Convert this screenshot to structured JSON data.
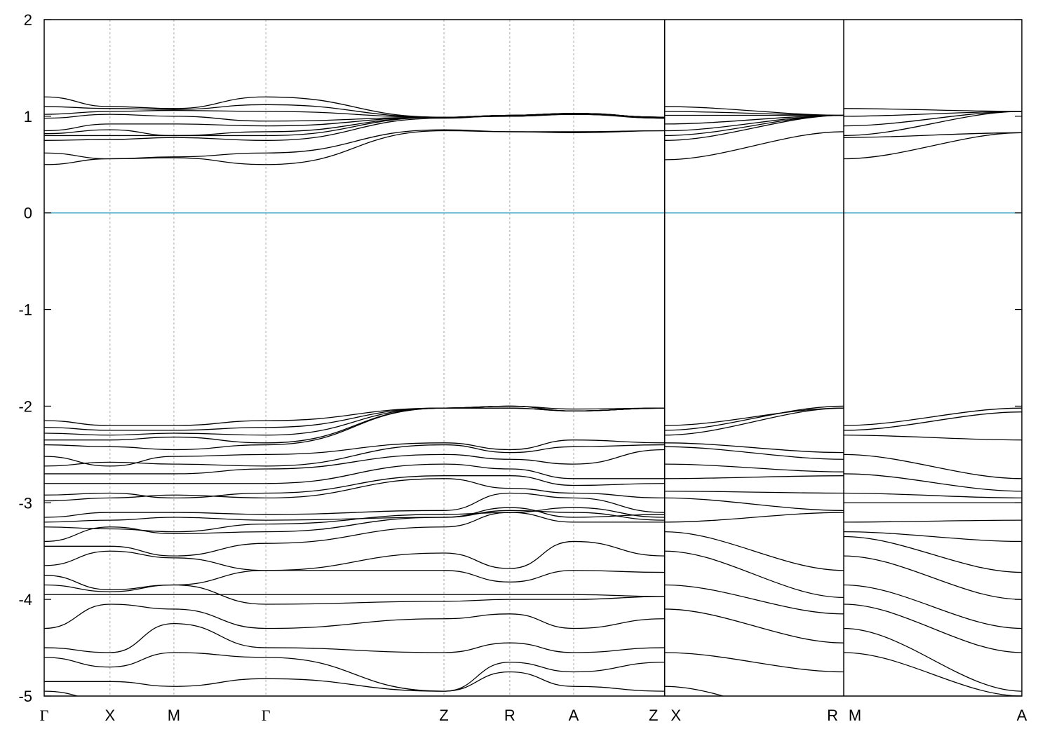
{
  "chart_data": {
    "type": "line",
    "title": "",
    "xlabel": "",
    "ylabel": "",
    "ylim": [
      -5,
      2
    ],
    "y_ticks": [
      2,
      1,
      0,
      -1,
      -2,
      -3,
      -4,
      -5
    ],
    "y_tick_labels": [
      "2",
      "1",
      "0",
      "-1",
      "-2",
      "-3",
      "-4",
      "-5"
    ],
    "grid": "vertical dotted lines at high-symmetry points",
    "fermi_level": {
      "value": 0,
      "color": "#4aa8c8"
    },
    "line_color": "#000000",
    "kpoint_labels": [
      "Γ",
      "X",
      "M",
      "Γ",
      "Z",
      "R",
      "A",
      "Z",
      "X",
      "R",
      "M",
      "A"
    ],
    "kpoint_positions": [
      0,
      0.68,
      1.34,
      2.29,
      4.13,
      4.81,
      5.47,
      6.41,
      6.41,
      8.26,
      8.26,
      10.1
    ],
    "panel_breaks": [
      6.41,
      8.26
    ],
    "segments": [
      {
        "x": [
          0,
          0.68,
          1.34,
          2.29,
          4.13,
          4.81,
          5.47,
          6.41
        ],
        "bands": [
          [
            -4.95,
            -5.05,
            -5.1,
            -5.05,
            -5.2,
            -5.2,
            -5.2,
            -5.1
          ],
          [
            -4.85,
            -4.85,
            -4.9,
            -4.82,
            -4.95,
            -4.75,
            -4.9,
            -4.95
          ],
          [
            -4.6,
            -4.7,
            -4.55,
            -4.6,
            -4.95,
            -4.65,
            -4.75,
            -4.65
          ],
          [
            -4.5,
            -4.55,
            -4.25,
            -4.5,
            -4.55,
            -4.45,
            -4.55,
            -4.5
          ],
          [
            -4.3,
            -4.05,
            -4.1,
            -4.3,
            -4.2,
            -4.15,
            -4.3,
            -4.2
          ],
          [
            -3.95,
            -3.95,
            -3.95,
            -3.95,
            -3.95,
            -3.95,
            -3.95,
            -3.97
          ],
          [
            -3.85,
            -3.92,
            -3.85,
            -4.05,
            -4.02,
            -4.0,
            -4.0,
            -3.97
          ],
          [
            -3.75,
            -3.9,
            -3.85,
            -3.7,
            -3.7,
            -3.82,
            -3.7,
            -3.72
          ],
          [
            -3.65,
            -3.5,
            -3.57,
            -3.7,
            -3.52,
            -3.68,
            -3.4,
            -3.55
          ],
          [
            -3.45,
            -3.45,
            -3.55,
            -3.42,
            -3.25,
            -3.1,
            -3.2,
            -3.2
          ],
          [
            -3.4,
            -3.25,
            -3.32,
            -3.3,
            -3.15,
            -3.08,
            -3.1,
            -3.18
          ],
          [
            -3.25,
            -3.27,
            -3.3,
            -3.22,
            -3.12,
            -3.1,
            -3.05,
            -3.15
          ],
          [
            -3.2,
            -3.18,
            -3.15,
            -3.18,
            -3.15,
            -3.05,
            -3.15,
            -3.12
          ],
          [
            -3.15,
            -3.1,
            -3.1,
            -3.12,
            -3.08,
            -2.9,
            -2.95,
            -3.1
          ],
          [
            -2.98,
            -2.95,
            -2.92,
            -2.95,
            -2.75,
            -2.85,
            -2.9,
            -2.95
          ],
          [
            -2.92,
            -2.9,
            -2.95,
            -2.9,
            -2.72,
            -2.72,
            -2.82,
            -2.8
          ],
          [
            -2.8,
            -2.8,
            -2.8,
            -2.8,
            -2.6,
            -2.65,
            -2.75,
            -2.75
          ],
          [
            -2.7,
            -2.7,
            -2.7,
            -2.65,
            -2.5,
            -2.55,
            -2.6,
            -2.45
          ],
          [
            -2.62,
            -2.58,
            -2.6,
            -2.62,
            -2.4,
            -2.48,
            -2.42,
            -2.4
          ],
          [
            -2.52,
            -2.62,
            -2.52,
            -2.5,
            -2.38,
            -2.45,
            -2.35,
            -2.38
          ],
          [
            -2.4,
            -2.42,
            -2.45,
            -2.4,
            -2.02,
            -2.02,
            -2.05,
            -2.02
          ],
          [
            -2.35,
            -2.35,
            -2.32,
            -2.38,
            -2.02,
            -2.0,
            -2.05,
            -2.02
          ],
          [
            -2.28,
            -2.3,
            -2.28,
            -2.3,
            -2.02,
            -2.02,
            -2.05,
            -2.02
          ],
          [
            -2.22,
            -2.25,
            -2.25,
            -2.22,
            -2.02,
            -2.0,
            -2.05,
            -2.02
          ],
          [
            -2.15,
            -2.2,
            -2.2,
            -2.15,
            -2.02,
            -2.0,
            -2.03,
            -2.02
          ],
          [
            0.5,
            0.56,
            0.57,
            0.5,
            0.85,
            0.84,
            0.83,
            0.85
          ],
          [
            0.62,
            0.56,
            0.58,
            0.62,
            0.86,
            0.84,
            0.84,
            0.85
          ],
          [
            0.75,
            0.76,
            0.78,
            0.75,
            0.98,
            1.01,
            1.03,
            0.98
          ],
          [
            0.8,
            0.8,
            0.8,
            0.8,
            0.99,
            1.0,
            1.03,
            0.99
          ],
          [
            0.82,
            0.86,
            0.8,
            0.84,
            0.99,
            1.0,
            1.02,
            0.99
          ],
          [
            0.85,
            0.92,
            0.92,
            0.9,
            0.99,
            1.01,
            1.03,
            0.98
          ],
          [
            0.98,
            1.02,
            1.0,
            0.95,
            0.99,
            1.01,
            1.02,
            0.99
          ],
          [
            1.02,
            1.05,
            1.06,
            1.05,
            0.99,
            1.01,
            1.03,
            0.99
          ],
          [
            1.1,
            1.08,
            1.07,
            1.12,
            0.99,
            1.01,
            1.03,
            0.99
          ],
          [
            1.2,
            1.1,
            1.08,
            1.2,
            0.99,
            1.0,
            1.02,
            0.98
          ]
        ]
      },
      {
        "x": [
          6.41,
          8.26
        ],
        "bands": [
          [
            -4.9,
            -5.3
          ],
          [
            -4.55,
            -4.75
          ],
          [
            -4.1,
            -4.45
          ],
          [
            -3.85,
            -4.15
          ],
          [
            -3.5,
            -3.98
          ],
          [
            -3.3,
            -3.7
          ],
          [
            -3.2,
            -3.1
          ],
          [
            -2.95,
            -3.08
          ],
          [
            -2.88,
            -2.9
          ],
          [
            -2.75,
            -2.72
          ],
          [
            -2.6,
            -2.68
          ],
          [
            -2.42,
            -2.55
          ],
          [
            -2.38,
            -2.48
          ],
          [
            -2.3,
            -2.02
          ],
          [
            -2.25,
            -2.0
          ],
          [
            -2.2,
            -2.02
          ],
          [
            0.55,
            0.84
          ],
          [
            0.75,
            1.01
          ],
          [
            0.8,
            1.01
          ],
          [
            0.85,
            1.01
          ],
          [
            0.92,
            1.01
          ],
          [
            1.01,
            1.01
          ],
          [
            1.05,
            1.01
          ],
          [
            1.1,
            1.01
          ]
        ]
      },
      {
        "x": [
          8.26,
          10.1
        ],
        "bands": [
          [
            -4.55,
            -5.0
          ],
          [
            -4.3,
            -4.95
          ],
          [
            -4.05,
            -4.55
          ],
          [
            -3.85,
            -4.3
          ],
          [
            -3.55,
            -4.0
          ],
          [
            -3.35,
            -3.72
          ],
          [
            -3.3,
            -3.4
          ],
          [
            -3.2,
            -3.18
          ],
          [
            -3.0,
            -3.0
          ],
          [
            -2.9,
            -2.95
          ],
          [
            -2.7,
            -2.88
          ],
          [
            -2.5,
            -2.75
          ],
          [
            -2.3,
            -2.35
          ],
          [
            -2.25,
            -2.06
          ],
          [
            -2.2,
            -2.02
          ],
          [
            0.56,
            0.83
          ],
          [
            0.78,
            0.83
          ],
          [
            0.8,
            1.05
          ],
          [
            0.9,
            1.05
          ],
          [
            1.0,
            1.05
          ],
          [
            1.08,
            1.05
          ]
        ]
      }
    ]
  }
}
